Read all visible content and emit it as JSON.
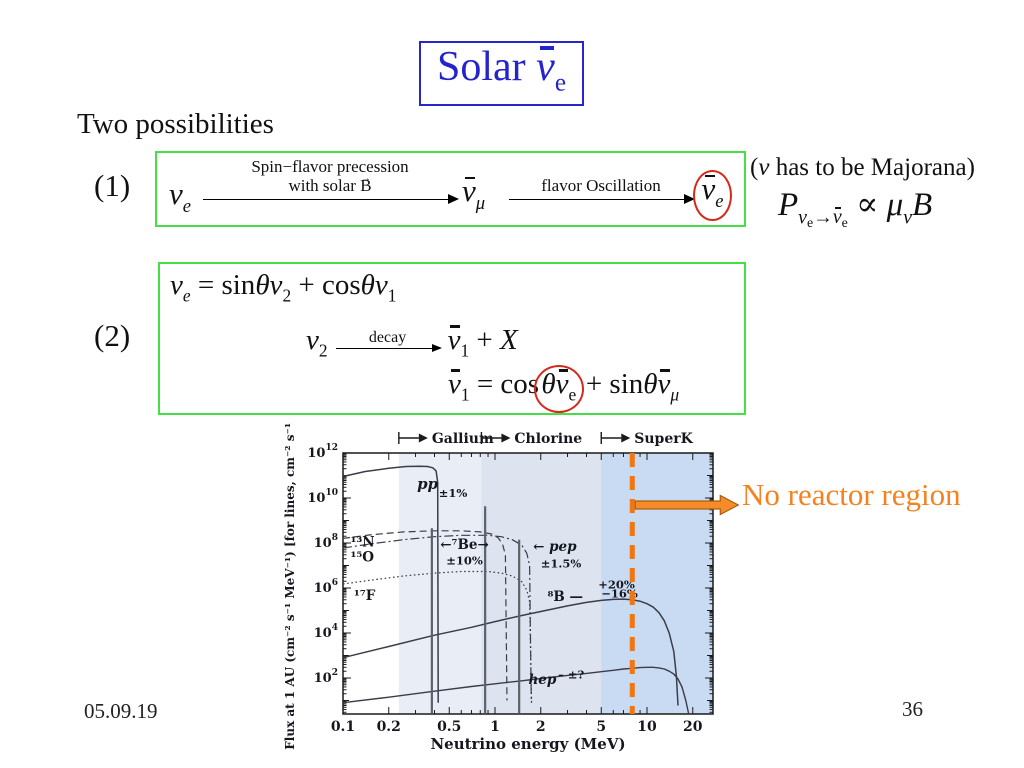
{
  "title_tokens": [
    {
      "s": "Solar "
    },
    {
      "s": "ν",
      "it": true,
      "bar": true
    },
    {
      "s": "e",
      "sub": true
    }
  ],
  "heading": "Two possibilities",
  "no_reactor_label": "No reactor region",
  "footer": {
    "date": "05.09.19",
    "page": "36"
  },
  "majorana_tokens": [
    {
      "s": "("
    },
    {
      "s": "ν",
      "it": true
    },
    {
      "s": " has to be Majorana)"
    }
  ],
  "prob_tokens": [
    {
      "s": "P",
      "it": true
    },
    {
      "s": "ν",
      "it": true,
      "sub": true
    },
    {
      "s": "e",
      "sub2": true
    },
    {
      "s": "→",
      "sub": true
    },
    {
      "s": "ν",
      "it": true,
      "sub": true,
      "bar": true
    },
    {
      "s": "e",
      "sub2": true
    },
    {
      "s": " ∝ "
    },
    {
      "s": "μ",
      "it": true
    },
    {
      "s": "ν",
      "it": true,
      "sub": true
    },
    {
      "s": "B",
      "it": true
    }
  ],
  "item1": {
    "number": "(1)",
    "start_tokens": [
      {
        "s": "ν",
        "it": true
      },
      {
        "s": "e",
        "it": true,
        "sub": true
      }
    ],
    "arrow1_label_line1": [
      {
        "s": "Spin−flavor precession"
      }
    ],
    "arrow1_label_line2": [
      {
        "s": "with solar "
      },
      {
        "s": "B",
        "vec": true
      }
    ],
    "mid_tokens": [
      {
        "s": "ν",
        "it": true,
        "bar": true
      },
      {
        "s": "μ",
        "it": true,
        "sub": true
      }
    ],
    "arrow2_label": [
      {
        "s": "flavor Oscillation"
      }
    ],
    "end_tokens": [
      {
        "s": "ν",
        "it": true,
        "bar": true,
        "circle": true
      },
      {
        "s": "e",
        "it": true,
        "sub": true,
        "circle": true
      }
    ]
  },
  "item2": {
    "number": "(2)",
    "eq1_tokens": [
      {
        "s": "ν",
        "it": true
      },
      {
        "s": "e",
        "it": true,
        "sub": true
      },
      {
        "s": " = sin"
      },
      {
        "s": "θν",
        "it": true
      },
      {
        "s": "2",
        "sub": true
      },
      {
        "s": " + cos"
      },
      {
        "s": "θν",
        "it": true
      },
      {
        "s": "1",
        "sub": true
      }
    ],
    "eq2_lhs_tokens": [
      {
        "s": "ν",
        "it": true
      },
      {
        "s": "2",
        "sub": true
      }
    ],
    "decay_label": "decay",
    "eq2_rhs_tokens": [
      {
        "s": "ν",
        "it": true,
        "bar": true
      },
      {
        "s": "1",
        "sub": true
      },
      {
        "s": " + "
      },
      {
        "s": "X",
        "it": true
      }
    ],
    "eq3_tokens": [
      {
        "s": "ν",
        "it": true,
        "bar": true
      },
      {
        "s": "1",
        "sub": true
      },
      {
        "s": " = cos"
      },
      {
        "s": "θ",
        "it": true,
        "circle": true
      },
      {
        "s": "ν",
        "it": true,
        "bar": true,
        "circle": true
      },
      {
        "s": "e",
        "sub": true,
        "circle": true
      },
      {
        "s": " + sin"
      },
      {
        "s": "θ",
        "it": true
      },
      {
        "s": "ν",
        "it": true,
        "bar": true
      },
      {
        "s": "μ",
        "it": true,
        "sub": true
      }
    ]
  },
  "chart_data": {
    "type": "line",
    "title": "",
    "xlabel": "Neutrino energy (MeV)",
    "ylabel": "Flux at 1 AU (cm⁻² s⁻¹ MeV⁻¹) [for lines, cm⁻² s⁻¹]",
    "x_scale": "log",
    "y_scale": "log",
    "xlim": [
      0.1,
      27
    ],
    "ylim": [
      2.5,
      1000000000000.0
    ],
    "x_ticks": [
      0.1,
      0.2,
      0.5,
      1,
      2,
      5,
      10,
      20
    ],
    "x_tick_labels": [
      "0.1",
      "0.2",
      "0.5",
      "1",
      "2",
      "5",
      "10",
      "20"
    ],
    "y_label_exponents": [
      2,
      4,
      6,
      8,
      10,
      12
    ],
    "grid": false,
    "detectors": [
      {
        "label": "Gallium",
        "from_mev": 0.233,
        "color": "#e9edf6"
      },
      {
        "label": "Chlorine",
        "from_mev": 0.814,
        "color": "#dde4ef"
      },
      {
        "label": "SuperK",
        "from_mev": 5.0,
        "color": "#c9dbf2"
      }
    ],
    "series": [
      {
        "name": "pp",
        "style": "solid",
        "width": 1.5,
        "points": [
          [
            0.1,
            90000000000.0
          ],
          [
            0.14,
            150000000000.0
          ],
          [
            0.2,
            210000000000.0
          ],
          [
            0.26,
            250000000000.0
          ],
          [
            0.32,
            260000000000.0
          ],
          [
            0.36,
            250000000000.0
          ],
          [
            0.39,
            220000000000.0
          ],
          [
            0.41,
            160000000000.0
          ],
          [
            0.42,
            50000000000.0
          ],
          [
            0.423,
            8
          ]
        ]
      },
      {
        "name": "13N",
        "style": "dashed",
        "width": 1.2,
        "points": [
          [
            0.1,
            160000000.0
          ],
          [
            0.15,
            230000000.0
          ],
          [
            0.25,
            310000000.0
          ],
          [
            0.4,
            350000000.0
          ],
          [
            0.6,
            350000000.0
          ],
          [
            0.8,
            310000000.0
          ],
          [
            0.95,
            250000000.0
          ],
          [
            1.05,
            170000000.0
          ],
          [
            1.12,
            90000000.0
          ],
          [
            1.17,
            30000000.0
          ],
          [
            1.199,
            10
          ]
        ]
      },
      {
        "name": "15O",
        "style": "dashdot",
        "width": 1.2,
        "points": [
          [
            0.1,
            60000000.0
          ],
          [
            0.15,
            90000000.0
          ],
          [
            0.25,
            140000000.0
          ],
          [
            0.4,
            190000000.0
          ],
          [
            0.6,
            220000000.0
          ],
          [
            0.9,
            220000000.0
          ],
          [
            1.1,
            190000000.0
          ],
          [
            1.3,
            140000000.0
          ],
          [
            1.5,
            80000000.0
          ],
          [
            1.62,
            35000000.0
          ],
          [
            1.69,
            10000000.0
          ],
          [
            1.732,
            8
          ]
        ]
      },
      {
        "name": "17F",
        "style": "dotted",
        "width": 1.2,
        "points": [
          [
            0.1,
            1500000.0
          ],
          [
            0.15,
            2200000.0
          ],
          [
            0.25,
            3400000.0
          ],
          [
            0.4,
            4600000.0
          ],
          [
            0.6,
            5400000.0
          ],
          [
            0.9,
            5400000.0
          ],
          [
            1.1,
            4600000.0
          ],
          [
            1.3,
            3400000.0
          ],
          [
            1.5,
            1900000.0
          ],
          [
            1.62,
            800000.0
          ],
          [
            1.69,
            250000.0
          ],
          [
            1.74,
            8
          ]
        ]
      },
      {
        "name": "8B",
        "style": "solid",
        "width": 1.5,
        "points": [
          [
            0.1,
            800.0
          ],
          [
            0.2,
            2500.0
          ],
          [
            0.4,
            8000.0
          ],
          [
            0.7,
            18000.0
          ],
          [
            1,
            32000.0
          ],
          [
            1.5,
            60000.0
          ],
          [
            2,
            90000.0
          ],
          [
            3,
            160000.0
          ],
          [
            4,
            230000.0
          ],
          [
            5,
            280000.0
          ],
          [
            6,
            310000.0
          ],
          [
            7,
            320000.0
          ],
          [
            8,
            300000.0
          ],
          [
            9,
            260000.0
          ],
          [
            10,
            200000.0
          ],
          [
            11,
            140000.0
          ],
          [
            12,
            80000.0
          ],
          [
            13,
            35000.0
          ],
          [
            14,
            10000.0
          ],
          [
            15,
            1500.0
          ],
          [
            15.6,
            120.0
          ],
          [
            16,
            6
          ]
        ]
      },
      {
        "name": "hep",
        "style": "solid",
        "width": 1.4,
        "points": [
          [
            0.1,
            8
          ],
          [
            0.2,
            14
          ],
          [
            0.4,
            26
          ],
          [
            0.7,
            42
          ],
          [
            1,
            55
          ],
          [
            1.5,
            75
          ],
          [
            2,
            95
          ],
          [
            3,
            130
          ],
          [
            4,
            160
          ],
          [
            5,
            190
          ],
          [
            6,
            220
          ],
          [
            7,
            250
          ],
          [
            8,
            270
          ],
          [
            9,
            290
          ],
          [
            10,
            300
          ],
          [
            11,
            300
          ],
          [
            12,
            280
          ],
          [
            13,
            250
          ],
          [
            14,
            200
          ],
          [
            15,
            150
          ],
          [
            16,
            90
          ],
          [
            17,
            40
          ],
          [
            18,
            10
          ],
          [
            18.8,
            2.5
          ]
        ]
      }
    ],
    "mono_lines": [
      {
        "name": "7Be-384keV",
        "e_mev": 0.3843,
        "flux": 450000000.0
      },
      {
        "name": "7Be-862keV",
        "e_mev": 0.8613,
        "flux": 4300000000.0
      },
      {
        "name": "pep",
        "e_mev": 1.442,
        "flux": 140000000.0
      }
    ],
    "annotations": [
      {
        "text": "pp",
        "e": 0.36,
        "f": 25000000000.0,
        "size": 15,
        "it": true,
        "bold": true
      },
      {
        "text": "±1%",
        "e": 0.53,
        "f": 11000000000.0,
        "size": 11.5,
        "bold": true
      },
      {
        "text": "¹³N",
        "e": 0.112,
        "f": 70000000.0,
        "size": 13.5,
        "bold": true,
        "anchor": "start"
      },
      {
        "text": "¹⁵O",
        "e": 0.112,
        "f": 15000000.0,
        "size": 13.5,
        "bold": true,
        "anchor": "start"
      },
      {
        "text": "¹⁷F",
        "e": 0.118,
        "f": 300000.0,
        "size": 13.5,
        "bold": true,
        "anchor": "start"
      },
      {
        "text": "←⁷Be→",
        "e": 0.63,
        "f": 55000000.0,
        "size": 13.5,
        "bold": true
      },
      {
        "text": "±10%",
        "e": 0.63,
        "f": 11000000.0,
        "size": 11.5,
        "bold": true
      },
      {
        "text": "← pep",
        "e": 1.78,
        "f": 45000000.0,
        "size": 13.5,
        "bold": true,
        "it": true,
        "anchor": "start"
      },
      {
        "text": "±1.5%",
        "e": 2.0,
        "f": 8000000.0,
        "size": 11.5,
        "bold": true,
        "anchor": "start"
      },
      {
        "text": "⁸B —",
        "e": 2.9,
        "f": 260000.0,
        "size": 13.5,
        "bold": true
      },
      {
        "text": "+20%",
        "e": 6.3,
        "f": 950000.0,
        "size": 11.5,
        "bold": true
      },
      {
        "text": "−16%",
        "e": 6.6,
        "f": 380000.0,
        "size": 11.5,
        "bold": true
      },
      {
        "text": "hep",
        "e": 2.05,
        "f": 55,
        "size": 13.5,
        "bold": true,
        "it": true
      },
      {
        "text": "– ±?",
        "e": 2.6,
        "f": 95,
        "size": 11.5,
        "bold": true,
        "anchor": "start"
      }
    ],
    "reactor_free_line_mev": 8,
    "accent_orange": "#f1760f",
    "arrow_fill": "#f68b28",
    "arrow_stroke": "#a85c12",
    "curve_color": "#3c3c4a",
    "mono_line_color": "#5c616c"
  }
}
